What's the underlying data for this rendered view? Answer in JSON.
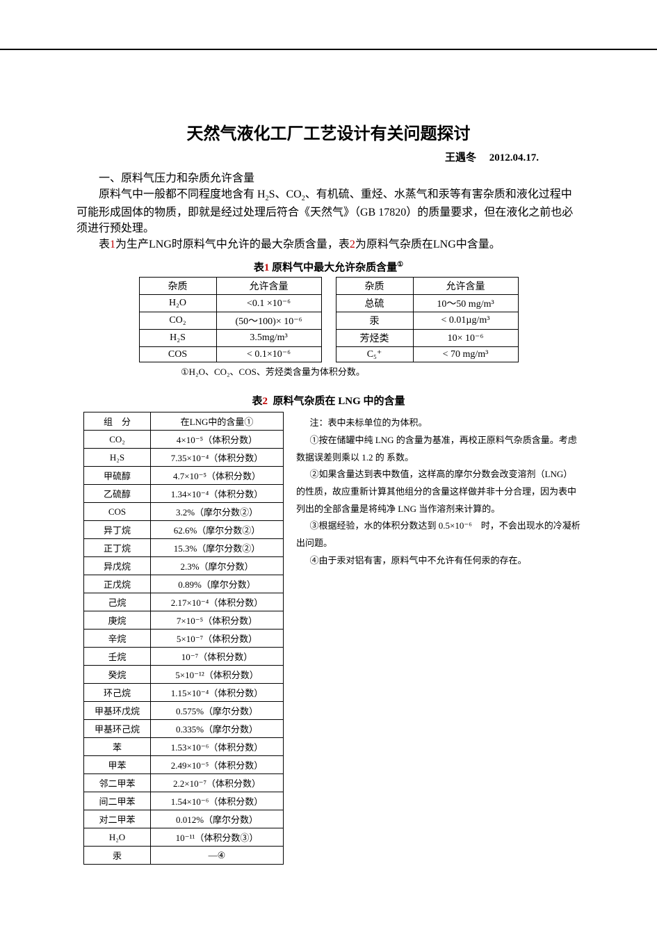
{
  "title": "天然气液化工厂工艺设计有关问题探讨",
  "author": "王遇冬",
  "date": "2012.04.17.",
  "section1": "一、原料气压力和杂质允许含量",
  "p1a": "原料气中一般都不同程度地含有 H",
  "p1b": "S、CO",
  "p1c": "、有机硫、重烃、水蒸气和汞等有害杂质和液化过程中可能形成固体的物质，即就是经过处理后符合《天然气》（GB 17820）的质量要求，但在液化之前也必须进行预处理。",
  "p2a": "表",
  "p2b": "为生产LNG时原料气中允许的最大杂质含量，表",
  "p2c": "为原料气杂质在LNG中含量。",
  "one": "1",
  "two": "2",
  "table1": {
    "caption_a": "表",
    "caption_b": "原料气中最大允许杂质含量",
    "sup": "①",
    "h1": "杂质",
    "h2": "允许含量",
    "r1c1": "H₂O",
    "r1c2": "<0.1 ×10⁻⁶",
    "r1c3": "总硫",
    "r1c4": "10～50 mg/m³",
    "r2c1": "CO₂",
    "r2c2": "(50～100)× 10⁻⁶",
    "r2c3": "汞",
    "r2c4": "< 0.01µg/m³",
    "r3c1": "H₂S",
    "r3c2": "3.5mg/m³",
    "r3c3": "芳烃类",
    "r3c4": "10× 10⁻⁶",
    "r4c1": "COS",
    "r4c2": "< 0.1×10⁻⁶",
    "r4c3": "C₅⁺",
    "r4c4": "< 70 mg/m³",
    "note": "①H₂O、CO₂、COS、芳烃类含量为体积分数。"
  },
  "table2": {
    "caption_a": "表",
    "caption_b": "原料气杂质在 LNG 中的含量",
    "h1": "组　分",
    "h2": "在LNG中的含量①",
    "rows": [
      {
        "c1": "CO₂",
        "c2": "4×10⁻⁵（体积分数）"
      },
      {
        "c1": "H₂S",
        "c2": "7.35×10⁻⁴（体积分数）"
      },
      {
        "c1": "甲硫醇",
        "c2": "4.7×10⁻⁵（体积分数）"
      },
      {
        "c1": "乙硫醇",
        "c2": "1.34×10⁻⁴（体积分数）"
      },
      {
        "c1": "COS",
        "c2": "3.2%（摩尔分数②）"
      },
      {
        "c1": "异丁烷",
        "c2": "62.6%（摩尔分数②）"
      },
      {
        "c1": "正丁烷",
        "c2": "15.3%（摩尔分数②）"
      },
      {
        "c1": "异戊烷",
        "c2": "2.3%（摩尔分数）"
      },
      {
        "c1": "正戊烷",
        "c2": "0.89%（摩尔分数）"
      },
      {
        "c1": "己烷",
        "c2": "2.17×10⁻⁴（体积分数）"
      },
      {
        "c1": "庚烷",
        "c2": "7×10⁻⁵（体积分数）"
      },
      {
        "c1": "辛烷",
        "c2": "5×10⁻⁷（体积分数）"
      },
      {
        "c1": "壬烷",
        "c2": "10⁻⁷（体积分数）"
      },
      {
        "c1": "癸烷",
        "c2": "5×10⁻¹²（体积分数）"
      },
      {
        "c1": "环己烷",
        "c2": "1.15×10⁻⁴（体积分数）"
      },
      {
        "c1": "甲基环戊烷",
        "c2": "0.575%（摩尔分数）"
      },
      {
        "c1": "甲基环己烷",
        "c2": "0.335%（摩尔分数）"
      },
      {
        "c1": "苯",
        "c2": "1.53×10⁻⁶（体积分数）"
      },
      {
        "c1": "甲苯",
        "c2": "2.49×10⁻⁵（体积分数）"
      },
      {
        "c1": "邻二甲苯",
        "c2": "2.2×10⁻⁷（体积分数）"
      },
      {
        "c1": "间二甲苯",
        "c2": "1.54×10⁻⁶（体积分数）"
      },
      {
        "c1": "对二甲苯",
        "c2": "0.012%（摩尔分数）"
      },
      {
        "c1": "H₂O",
        "c2": "10⁻¹¹（体积分数③）"
      },
      {
        "c1": "汞",
        "c2": "—④"
      }
    ]
  },
  "notes": {
    "n0": "注：表中未标单位的为体积。",
    "n1": "①按在储罐中纯 LNG 的含量为基准，再校正原料气杂质含量。考虑数据误差则乘以 1.2 的 系数。",
    "n2": "②如果含量达到表中数值，这样高的摩尔分数会改变溶剂（LNG）的性质，故应重新计算其他组分的含量这样做并非十分合理，因为表中列出的全部含量是将纯净 LNG 当作溶剂来计算的。",
    "n3": "③根据经验，水的体积分数达到 0.5×10⁻⁶　时，不会出现水的冷凝析出问题。",
    "n4": "④由于汞对铝有害，原料气中不允许有任何汞的存在。"
  }
}
